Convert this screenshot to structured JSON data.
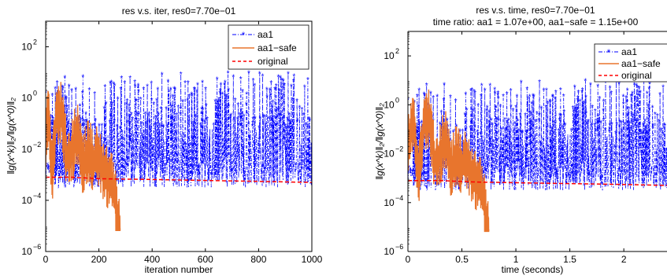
{
  "chart_data": [
    {
      "type": "line",
      "title": "res v.s. iter, res0=7.70e−01",
      "subtitle": "",
      "xlabel": "iteration number",
      "ylabel": "‖g(x^k)‖₂/‖g(x^0)‖₂",
      "y_scale": "log",
      "xlim": [
        0,
        1000
      ],
      "ylim": [
        1e-06,
        1000
      ],
      "x_ticks": [
        "0",
        "200",
        "400",
        "600",
        "800",
        "1000"
      ],
      "y_tick_exponents": [
        "−6",
        "−4",
        "−2",
        "0",
        "2"
      ],
      "grid": false,
      "legend_position": "top-right",
      "series": [
        {
          "name": "aa1",
          "color": "#0000ff",
          "style": "dash-dot with star markers",
          "x_max": 1000,
          "y_range": [
            0.0003,
            10
          ]
        },
        {
          "name": "aa1−safe",
          "color": "#e8752d",
          "style": "solid",
          "x": [
            0,
            10,
            25,
            40,
            60,
            80,
            100,
            120,
            140,
            160,
            180,
            200,
            220,
            240,
            260,
            270,
            280
          ],
          "y": [
            0.02,
            0.3,
            0.001,
            0.3,
            0.2,
            0.005,
            0.01,
            0.05,
            0.002,
            0.01,
            0.003,
            0.005,
            0.001,
            0.0005,
            0.0002,
            1e-05,
            8e-06
          ]
        },
        {
          "name": "original",
          "color": "#ff0000",
          "style": "dashed",
          "x": [
            0,
            100,
            200,
            400,
            600,
            800,
            1000
          ],
          "y": [
            0.0008,
            0.0008,
            0.0007,
            0.00065,
            0.0006,
            0.00055,
            0.0005
          ]
        }
      ]
    },
    {
      "type": "line",
      "title": "res v.s. time, res0=7.70e−01",
      "subtitle": "time ratio: aa1 = 1.07e+00, aa1−safe = 1.15e+00",
      "xlabel": "time (seconds)",
      "ylabel": "‖g(x^k)‖₂/‖g(x^0)‖₂",
      "y_scale": "log",
      "xlim": [
        0,
        2.4
      ],
      "ylim": [
        1e-06,
        1000
      ],
      "x_ticks": [
        "0",
        "0.5",
        "1",
        "1.5",
        "2"
      ],
      "y_tick_exponents": [
        "−6",
        "−4",
        "−2",
        "0",
        "2"
      ],
      "grid": false,
      "legend_position": "top-right",
      "series": [
        {
          "name": "aa1",
          "color": "#0000ff",
          "style": "dash-dot with star markers",
          "x_max": 2.4,
          "y_range": [
            0.0003,
            10
          ]
        },
        {
          "name": "aa1−safe",
          "color": "#e8752d",
          "style": "solid",
          "x": [
            0,
            0.05,
            0.1,
            0.15,
            0.2,
            0.25,
            0.3,
            0.35,
            0.4,
            0.45,
            0.5,
            0.55,
            0.6,
            0.65,
            0.7,
            0.73,
            0.75
          ],
          "y": [
            0.02,
            0.3,
            0.001,
            0.3,
            0.2,
            0.005,
            0.01,
            0.05,
            0.002,
            0.01,
            0.003,
            0.005,
            0.001,
            0.0005,
            0.0002,
            1e-05,
            8e-06
          ]
        },
        {
          "name": "original",
          "color": "#ff0000",
          "style": "dashed",
          "x": [
            0,
            0.3,
            0.6,
            1.0,
            1.5,
            2.0,
            2.4
          ],
          "y": [
            0.0008,
            0.0008,
            0.0007,
            0.00065,
            0.0006,
            0.00055,
            0.0005
          ]
        }
      ]
    }
  ]
}
